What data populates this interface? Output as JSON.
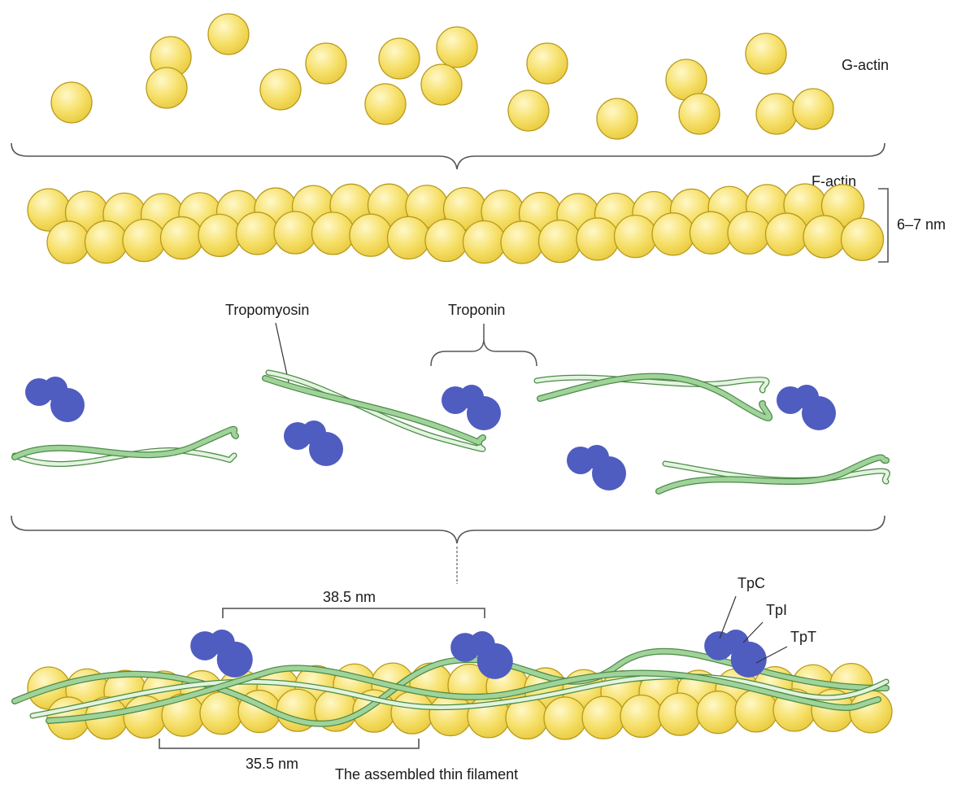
{
  "labels": {
    "g_actin": "G-actin",
    "f_actin": "F-actin",
    "width": "6–7 nm",
    "tropomyosin": "Tropomyosin",
    "troponin": "Troponin",
    "period_top": "38.5 nm",
    "period_bottom": "35.5 nm",
    "tpc": "TpC",
    "tpi": "TpI",
    "tpt": "TpT",
    "caption": "The assembled thin filament"
  },
  "colors": {
    "actin_fill": "#f3dd5a",
    "actin_highlight": "#fff6b8",
    "actin_stroke": "#b89a1c",
    "troponin": "#4f5cc0",
    "tropomyosin": "#9fd39a",
    "tropomyosin_light": "#e2f4df",
    "tropomyosin_stroke": "#4d8a47",
    "bracket": "#555555"
  }
}
